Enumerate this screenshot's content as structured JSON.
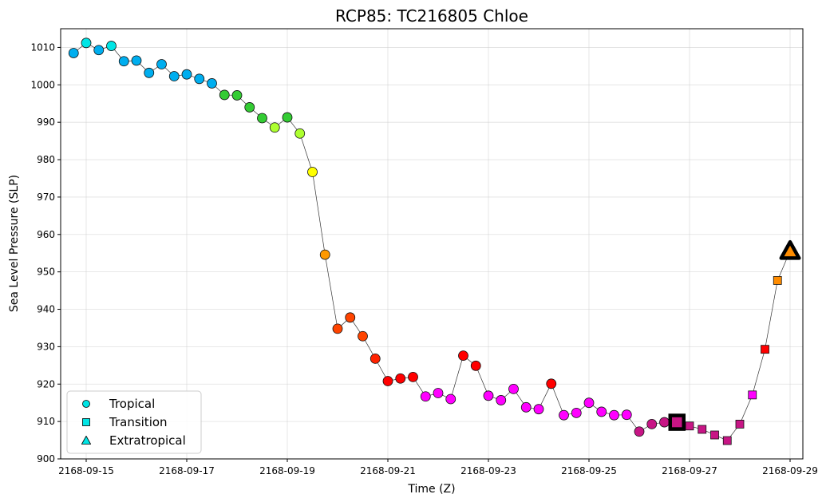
{
  "chart_data": {
    "type": "scatter",
    "title": "RCP85: TC216805 Chloe",
    "xlabel": "Time (Z)",
    "ylabel": "Sea Level Pressure (SLP)",
    "x_start": "2168-09-14 18:00",
    "step_hours": 6,
    "ylim": [
      900,
      1015
    ],
    "yticks": [
      900,
      910,
      920,
      930,
      940,
      950,
      960,
      970,
      980,
      990,
      1000,
      1010
    ],
    "xticks": [
      "2168-09-15",
      "2168-09-17",
      "2168-09-19",
      "2168-09-21",
      "2168-09-23",
      "2168-09-25",
      "2168-09-27",
      "2168-09-29"
    ],
    "grid": true,
    "legend_position": "lower-left",
    "legend": [
      {
        "label": "Tropical",
        "marker": "circle"
      },
      {
        "label": "Transition",
        "marker": "square"
      },
      {
        "label": "Extratropical",
        "marker": "triangle"
      }
    ],
    "values": [
      1008.5,
      1011.2,
      1009.3,
      1010.4,
      1006.3,
      1006.5,
      1003.2,
      1005.5,
      1002.3,
      1002.8,
      1001.6,
      1000.4,
      997.3,
      997.2,
      994.0,
      991.1,
      988.6,
      991.3,
      987.0,
      976.7,
      954.6,
      934.8,
      937.8,
      932.8,
      926.8,
      920.8,
      921.5,
      921.9,
      916.7,
      917.6,
      916.0,
      927.6,
      924.9,
      916.9,
      915.7,
      918.7,
      913.8,
      913.3,
      920.1,
      911.7,
      912.3,
      915.0,
      912.6,
      911.7,
      911.8,
      907.3,
      909.3,
      909.8,
      909.8,
      908.8,
      907.9,
      906.4,
      904.9,
      909.3,
      917.1,
      929.3,
      947.7,
      955.6
    ],
    "markers": [
      "circle",
      "circle",
      "circle",
      "circle",
      "circle",
      "circle",
      "circle",
      "circle",
      "circle",
      "circle",
      "circle",
      "circle",
      "circle",
      "circle",
      "circle",
      "circle",
      "circle",
      "circle",
      "circle",
      "circle",
      "circle",
      "circle",
      "circle",
      "circle",
      "circle",
      "circle",
      "circle",
      "circle",
      "circle",
      "circle",
      "circle",
      "circle",
      "circle",
      "circle",
      "circle",
      "circle",
      "circle",
      "circle",
      "circle",
      "circle",
      "circle",
      "circle",
      "circle",
      "circle",
      "circle",
      "circle",
      "circle",
      "circle",
      "square",
      "square",
      "square",
      "square",
      "square",
      "square",
      "square",
      "square",
      "square",
      "triangle"
    ],
    "colors": [
      "#00aeef",
      "#00e5e5",
      "#00aeef",
      "#00e5e5",
      "#00aeef",
      "#00aeef",
      "#00aeef",
      "#00aeef",
      "#00aeef",
      "#00aeef",
      "#00aeef",
      "#00aeef",
      "#33cc33",
      "#33cc33",
      "#33cc33",
      "#33cc33",
      "#adff2f",
      "#33cc33",
      "#adff2f",
      "#ffff00",
      "#ff9900",
      "#ff4400",
      "#ff4400",
      "#ff4400",
      "#ff2200",
      "#ff0000",
      "#ff0000",
      "#ff0000",
      "#ff00ff",
      "#ff00ff",
      "#ff00ff",
      "#ff0000",
      "#ff0000",
      "#ff00ff",
      "#ff00ff",
      "#ff00ff",
      "#ff00ff",
      "#ff00ff",
      "#ff0000",
      "#ff00ff",
      "#ff00ff",
      "#ff00ff",
      "#ff00ff",
      "#ff00ff",
      "#ff00ff",
      "#c71585",
      "#c71585",
      "#c71585",
      "#c71585",
      "#c71585",
      "#c71585",
      "#c71585",
      "#c71585",
      "#c71585",
      "#ff00ff",
      "#ff0000",
      "#ff8c00",
      "#ff8c00"
    ],
    "highlight_indices": [
      48,
      57
    ],
    "legend_face": "#00e5e5"
  }
}
